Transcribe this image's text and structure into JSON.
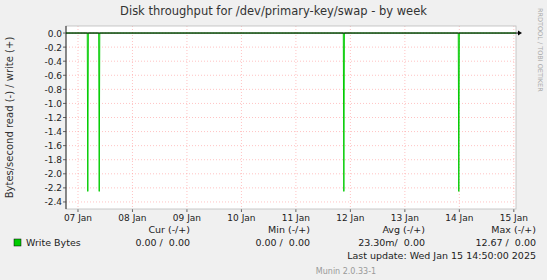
{
  "chart_data": {
    "type": "line",
    "title": "Disk throughput for /dev/primary-key/swap - by week",
    "y_label": "Bytes/second read (-) / write (+)",
    "watermark": "RRDTOOL / TOBI OETIKER",
    "x": [
      6.78,
      7.17,
      7.18,
      7.19,
      7.38,
      7.39,
      7.4,
      11.87,
      11.88,
      11.89,
      13.98,
      13.99,
      14.0,
      15.04
    ],
    "series": [
      {
        "name": "Write Bytes",
        "color": "#00cc00",
        "values": [
          0,
          0,
          -2.25,
          0,
          0,
          -2.25,
          0,
          0,
          -2.25,
          0,
          0,
          -2.25,
          0,
          0
        ]
      }
    ],
    "xlim": [
      6.78,
      15.04
    ],
    "xticks": [
      {
        "value": 7,
        "label": "07 Jan"
      },
      {
        "value": 8,
        "label": "08 Jan"
      },
      {
        "value": 9,
        "label": "09 Jan"
      },
      {
        "value": 10,
        "label": "10 Jan"
      },
      {
        "value": 11,
        "label": "11 Jan"
      },
      {
        "value": 12,
        "label": "12 Jan"
      },
      {
        "value": 13,
        "label": "13 Jan"
      },
      {
        "value": 14,
        "label": "14 Jan"
      },
      {
        "value": 15,
        "label": "15 Jan"
      }
    ],
    "ylim": [
      -2.5,
      0.1
    ],
    "yticks": [
      {
        "value": 0,
        "label": "0.0"
      },
      -0.2,
      -0.4,
      -0.6,
      -0.8,
      {
        "value": -1,
        "label": "-1.0"
      },
      -1.2,
      -1.4,
      -1.6,
      -1.8,
      {
        "value": -2,
        "label": "-2.0"
      },
      -2.2,
      -2.4
    ],
    "grid": true,
    "summary": {
      "columns": [
        "Cur (-/+)",
        "Min (-/+)",
        "Avg (-/+)",
        "Max (-/+)"
      ],
      "cells": [
        "0.00 /  0.00",
        "0.00 /  0.00",
        "23.30m/  0.00",
        "12.67 /  0.00"
      ]
    },
    "last_update": "Last update: Wed Jan 15 14:50:00 2025",
    "footer": "Munin 2.0.33-1"
  }
}
